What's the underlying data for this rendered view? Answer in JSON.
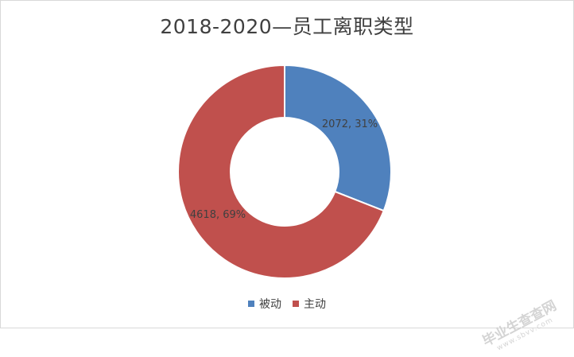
{
  "chart_data": {
    "type": "pie",
    "variant": "doughnut",
    "title": "2018-2020—员工离职类型",
    "categories": [
      "被动",
      "主动"
    ],
    "values": [
      2072,
      4618
    ],
    "percent_labels": [
      "31%",
      "69%"
    ],
    "data_labels": [
      "2072, 31%",
      "4618, 69%"
    ],
    "colors": [
      "#4f81bd",
      "#c0504d"
    ],
    "legend_position": "bottom",
    "start_angle": "12 o'clock, clockwise"
  },
  "watermark": {
    "text": "毕业生查查网",
    "sub": "www.sbvv.com"
  }
}
